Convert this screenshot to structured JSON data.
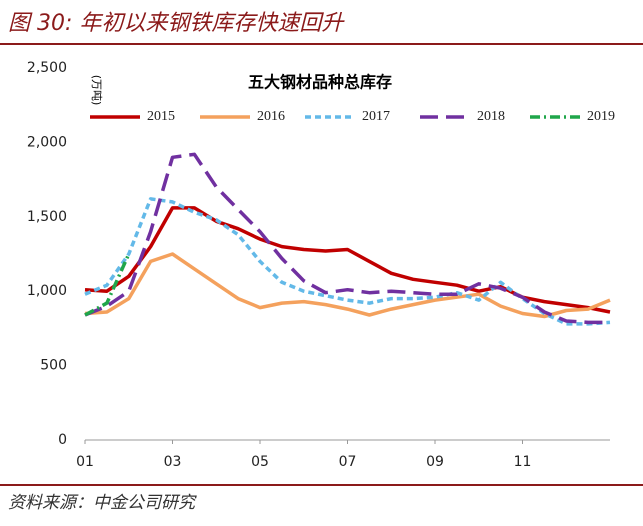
{
  "header": {
    "title": "图 30: 年初以来钢铁库存快速回升"
  },
  "footer": {
    "source": "资料来源：中金公司研究"
  },
  "chart_data": {
    "type": "line",
    "title": "五大钢材品种总库存",
    "y_label": "(万吨)",
    "x": [
      1,
      1.5,
      2,
      2.5,
      3,
      3.5,
      4,
      4.5,
      5,
      5.5,
      6,
      6.5,
      7,
      7.5,
      8,
      8.5,
      9,
      9.5,
      10,
      10.5,
      11,
      11.5,
      12,
      12.5,
      13
    ],
    "xlim": [
      1,
      13
    ],
    "xticks": [
      {
        "value": 1,
        "label": "01"
      },
      {
        "value": 3,
        "label": "03"
      },
      {
        "value": 5,
        "label": "05"
      },
      {
        "value": 7,
        "label": "07"
      },
      {
        "value": 9,
        "label": "09"
      },
      {
        "value": 11,
        "label": "11"
      }
    ],
    "ylim": [
      0,
      2500
    ],
    "yticks": [
      0,
      500,
      {
        "value": 1000,
        "label": "1,000"
      },
      {
        "value": 1500,
        "label": "1,500"
      },
      {
        "value": 2000,
        "label": "2,000"
      },
      {
        "value": 2500,
        "label": "2,500"
      }
    ],
    "grid": false,
    "series": [
      {
        "name": "2015",
        "color": "#c00000",
        "dash": "solid",
        "values": [
          1010,
          1000,
          1100,
          1300,
          1560,
          1560,
          1470,
          1420,
          1350,
          1300,
          1280,
          1270,
          1280,
          1200,
          1120,
          1080,
          1060,
          1040,
          1000,
          1030,
          960,
          930,
          910,
          890,
          860
        ]
      },
      {
        "name": "2016",
        "color": "#f4a15d",
        "dash": "solid",
        "values": [
          850,
          860,
          950,
          1200,
          1250,
          1150,
          1050,
          950,
          890,
          920,
          930,
          910,
          880,
          840,
          880,
          910,
          940,
          960,
          980,
          900,
          850,
          830,
          870,
          880,
          940
        ]
      },
      {
        "name": "2017",
        "color": "#63b9e8",
        "dash": "dashed",
        "values": [
          980,
          1040,
          1250,
          1620,
          1600,
          1530,
          1480,
          1380,
          1200,
          1060,
          1000,
          970,
          940,
          920,
          950,
          950,
          960,
          990,
          940,
          1060,
          950,
          850,
          780,
          780,
          790
        ]
      },
      {
        "name": "2018",
        "color": "#7030a0",
        "dash": "long-dashed",
        "values": [
          840,
          900,
          1000,
          1400,
          1900,
          1920,
          1700,
          1550,
          1400,
          1220,
          1070,
          990,
          1010,
          990,
          1000,
          990,
          980,
          980,
          1050,
          1020,
          960,
          860,
          800,
          790,
          790
        ]
      },
      {
        "name": "2019",
        "color": "#1fa64a",
        "dash": "dash-dot",
        "values": [
          840,
          920,
          1250,
          null,
          null,
          null,
          null,
          null,
          null,
          null,
          null,
          null,
          null,
          null,
          null,
          null,
          null,
          null,
          null,
          null,
          null,
          null,
          null,
          null,
          null
        ]
      }
    ]
  }
}
